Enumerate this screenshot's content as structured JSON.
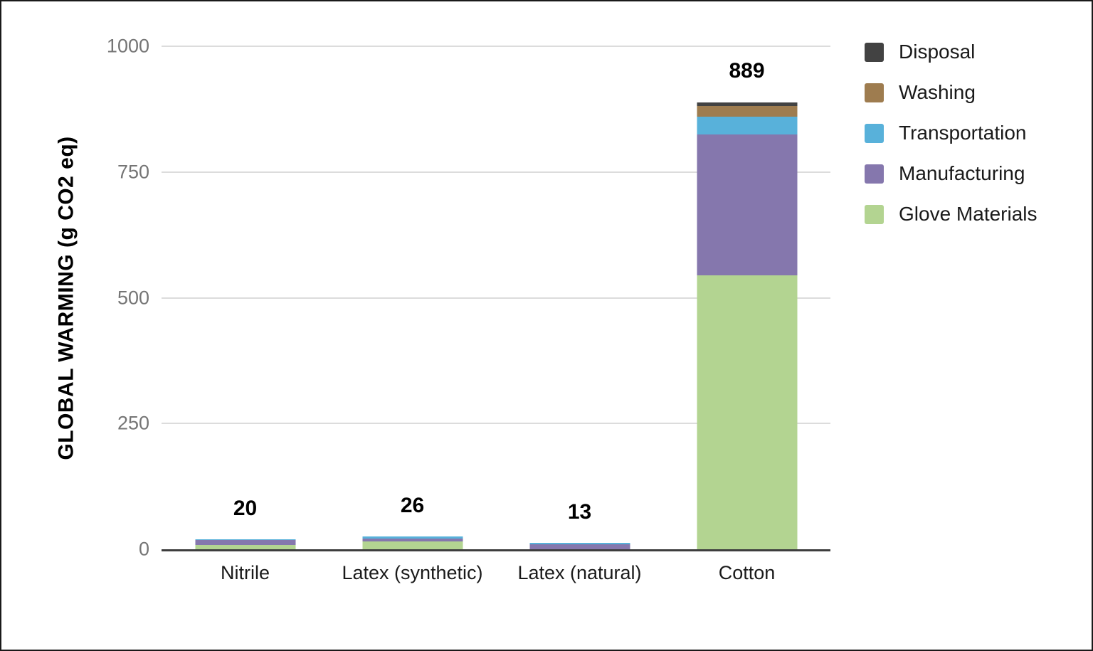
{
  "figure": {
    "background_color": "#ffffff",
    "border_color": "#1a1a1a",
    "axis_line_color": "#3d3d3d",
    "gridline_color": "#dcdcdc",
    "tick_label_color": "#757575"
  },
  "chart_data": {
    "type": "bar",
    "stacked": true,
    "title": "",
    "xlabel": "",
    "ylabel": "GLOBAL WARMING (g CO2 eq)",
    "ylim": [
      0,
      1000
    ],
    "yticks": [
      0,
      250,
      500,
      750,
      1000
    ],
    "ytick_labels": [
      "0",
      "250",
      "500",
      "750",
      "1000"
    ],
    "grid": true,
    "legend_position": "top-right",
    "categories": [
      "Nitrile",
      "Latex (synthetic)",
      "Latex (natural)",
      "Cotton"
    ],
    "totals": [
      20,
      26,
      13,
      889
    ],
    "total_labels": [
      "20",
      "26",
      "13",
      "889"
    ],
    "series": [
      {
        "name": "Glove Materials",
        "color": "#b3d491",
        "values": [
          9,
          15,
          0,
          545
        ]
      },
      {
        "name": "Manufacturing",
        "color": "#8577ad",
        "values": [
          10,
          6,
          10,
          280
        ]
      },
      {
        "name": "Transportation",
        "color": "#58b1da",
        "values": [
          1,
          5,
          3,
          35
        ]
      },
      {
        "name": "Washing",
        "color": "#9e7c4f",
        "values": [
          0,
          0,
          0,
          21
        ]
      },
      {
        "name": "Disposal",
        "color": "#424242",
        "values": [
          0,
          0,
          0,
          8
        ]
      }
    ],
    "legend_order": [
      "Disposal",
      "Washing",
      "Transportation",
      "Manufacturing",
      "Glove Materials"
    ]
  }
}
